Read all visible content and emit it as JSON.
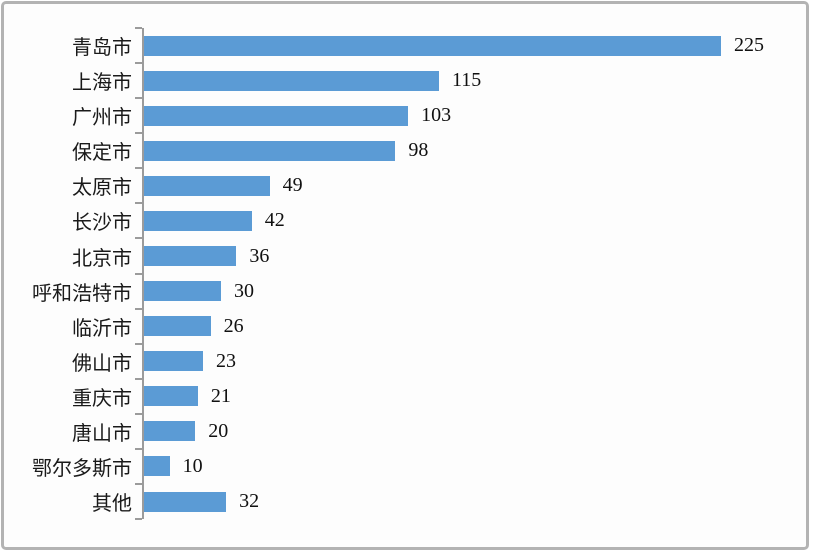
{
  "chart_data": {
    "type": "bar",
    "orientation": "horizontal",
    "title": "",
    "xlabel": "",
    "ylabel": "",
    "categories": [
      "青岛市",
      "上海市",
      "广州市",
      "保定市",
      "太原市",
      "长沙市",
      "北京市",
      "呼和浩特市",
      "临沂市",
      "佛山市",
      "重庆市",
      "唐山市",
      "鄂尔多斯市",
      "其他"
    ],
    "values": [
      225,
      115,
      103,
      98,
      49,
      42,
      36,
      30,
      26,
      23,
      21,
      20,
      10,
      32
    ],
    "data_labels_shown": true,
    "xlim": [
      0,
      255
    ],
    "grid": false,
    "legend": "none",
    "bar_color": "#5b9bd5",
    "axis_color": "#9b9b9b",
    "text_color": "#1a1a1a",
    "frame_border_color": "#b3b3b3"
  }
}
